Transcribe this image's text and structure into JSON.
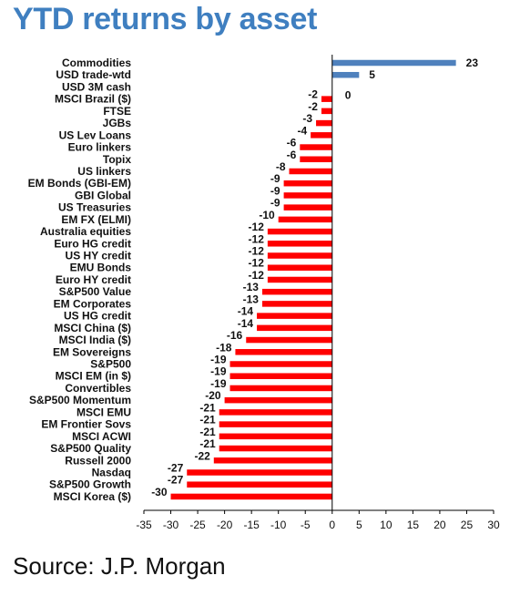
{
  "title": "YTD returns by asset",
  "source": "Source: J.P. Morgan",
  "colors": {
    "title": "#3f7fc0",
    "positive": "#4f81bd",
    "negative": "#ff0000"
  },
  "chart_data": {
    "type": "bar",
    "orientation": "horizontal",
    "title": "YTD returns by asset",
    "xlabel": "",
    "ylabel": "",
    "xlim": [
      -35,
      30
    ],
    "xticks": [
      -35,
      -30,
      -25,
      -20,
      -15,
      -10,
      -5,
      0,
      5,
      10,
      15,
      20,
      25,
      30
    ],
    "grid": false,
    "legend": "none",
    "categories": [
      "Commodities",
      "USD trade-wtd",
      "USD 3M cash",
      "MSCI Brazil ($)",
      "FTSE",
      "JGBs",
      "US Lev Loans",
      "Euro linkers",
      "Topix",
      "US linkers",
      "EM Bonds (GBI-EM)",
      "GBI Global",
      "US Treasuries",
      "EM FX (ELMI)",
      "Australia equities",
      "Euro HG credit",
      "US HY credit",
      "EMU Bonds",
      "Euro HY credit",
      "S&P500 Value",
      "EM Corporates",
      "US HG credit",
      "MSCI China ($)",
      "MSCI India ($)",
      "EM Sovereigns",
      "S&P500",
      "MSCI EM (in $)",
      "Convertibles",
      "S&P500 Momentum",
      "MSCI EMU",
      "EM Frontier Sovs",
      "MSCI ACWI",
      "S&P500 Quality",
      "Russell 2000",
      "Nasdaq",
      "S&P500 Growth",
      "MSCI Korea ($)"
    ],
    "values": [
      23,
      5,
      0,
      -2,
      -2,
      -3,
      -4,
      -6,
      -6,
      -8,
      -9,
      -9,
      -9,
      -10,
      -12,
      -12,
      -12,
      -12,
      -12,
      -13,
      -13,
      -14,
      -14,
      -16,
      -18,
      -19,
      -19,
      -19,
      -20,
      -21,
      -21,
      -21,
      -21,
      -22,
      -27,
      -27,
      -30
    ]
  }
}
